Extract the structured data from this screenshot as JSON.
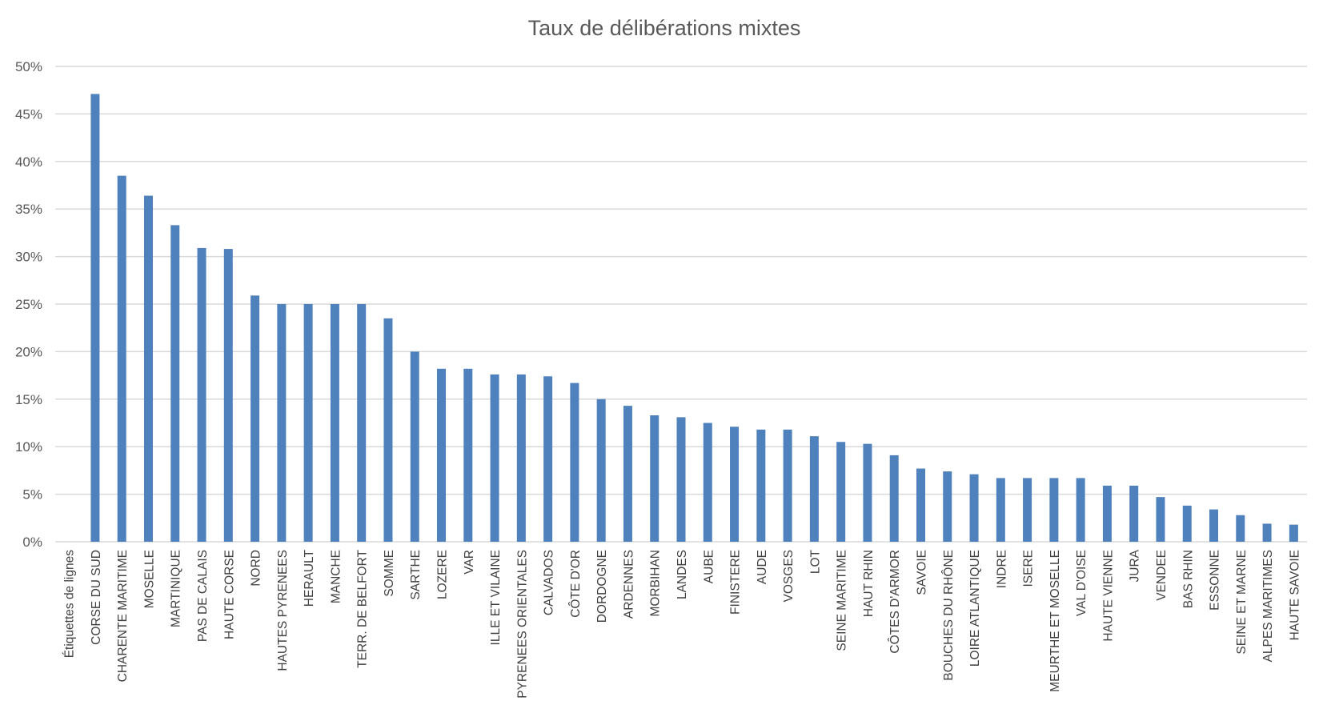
{
  "chart_data": {
    "type": "bar",
    "title": "Taux de délibérations mixtes",
    "xlabel": "",
    "ylabel": "",
    "ylim": [
      0,
      0.5
    ],
    "yticks": [
      0,
      0.05,
      0.1,
      0.15,
      0.2,
      0.25,
      0.3,
      0.35,
      0.4,
      0.45,
      0.5
    ],
    "ytick_labels": [
      "0%",
      "5%",
      "10%",
      "15%",
      "20%",
      "25%",
      "30%",
      "35%",
      "40%",
      "45%",
      "50%"
    ],
    "grid": true,
    "bar_color": "#4f81bd",
    "categories": [
      "Étiquettes de lignes",
      "CORSE DU SUD",
      "CHARENTE MARITIME",
      "MOSELLE",
      "MARTINIQUE",
      "PAS DE CALAIS",
      "HAUTE CORSE",
      "NORD",
      "HAUTES PYRENEES",
      "HERAULT",
      "MANCHE",
      "TERR. DE BELFORT",
      "SOMME",
      "SARTHE",
      "LOZERE",
      "VAR",
      "ILLE ET VILAINE",
      "PYRENEES ORIENTALES",
      "CALVADOS",
      "CÔTE D'OR",
      "DORDOGNE",
      "ARDENNES",
      "MORBIHAN",
      "LANDES",
      "AUBE",
      "FINISTERE",
      "AUDE",
      "VOSGES",
      "LOT",
      "SEINE MARITIME",
      "HAUT RHIN",
      "CÔTES D'ARMOR",
      "SAVOIE",
      "BOUCHES DU RHÔNE",
      "LOIRE ATLANTIQUE",
      "INDRE",
      "ISERE",
      "MEURTHE ET MOSELLE",
      "VAL D'OISE",
      "HAUTE VIENNE",
      "JURA",
      "VENDEE",
      "BAS RHIN",
      "ESSONNE",
      "SEINE ET MARNE",
      "ALPES MARITIMES",
      "HAUTE SAVOIE"
    ],
    "values": [
      null,
      0.471,
      0.385,
      0.364,
      0.333,
      0.309,
      0.308,
      0.259,
      0.25,
      0.25,
      0.25,
      0.25,
      0.235,
      0.2,
      0.182,
      0.182,
      0.176,
      0.176,
      0.174,
      0.167,
      0.15,
      0.143,
      0.133,
      0.131,
      0.125,
      0.121,
      0.118,
      0.118,
      0.111,
      0.105,
      0.103,
      0.091,
      0.077,
      0.074,
      0.071,
      0.067,
      0.067,
      0.067,
      0.067,
      0.059,
      0.059,
      0.047,
      0.038,
      0.034,
      0.028,
      0.019,
      0.018
    ]
  }
}
